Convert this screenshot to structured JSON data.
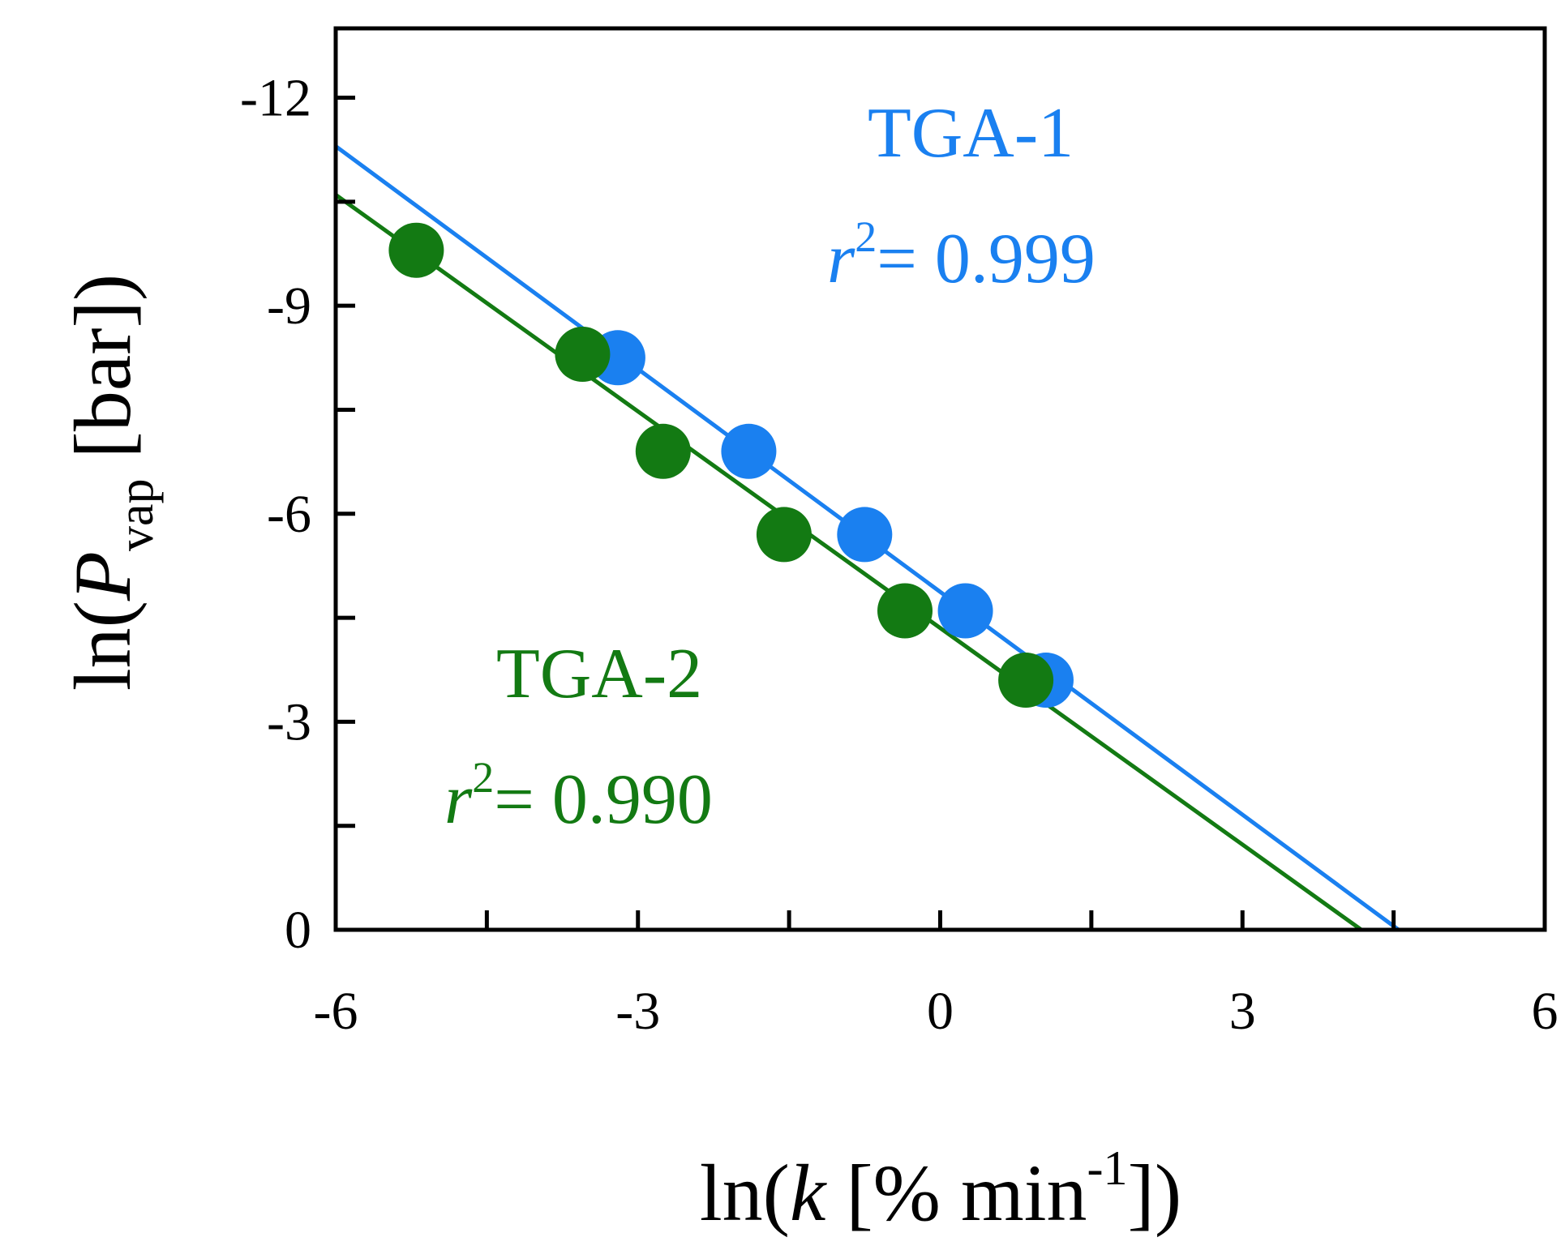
{
  "chart_data": {
    "type": "scatter",
    "title": "",
    "xlabel": {
      "prefix": "ln(",
      "var": "k",
      "unit_open": " [% min",
      "superscript": "-1",
      "unit_close": "])"
    },
    "ylabel": {
      "prefix": "ln(",
      "var": "P",
      "subscript": "vap",
      "unit": "  [bar])"
    },
    "xlim": [
      -6,
      6
    ],
    "ylim": [
      0,
      -13
    ],
    "y_inverted": true,
    "x_ticks": [
      {
        "value": -6,
        "label": "-6"
      },
      {
        "value": -3,
        "label": "-3"
      },
      {
        "value": 0,
        "label": "0"
      },
      {
        "value": 3,
        "label": "3"
      },
      {
        "value": 6,
        "label": "6"
      }
    ],
    "y_ticks": [
      {
        "value": 0,
        "label": "0"
      },
      {
        "value": -3,
        "label": "-3"
      },
      {
        "value": -6,
        "label": "-6"
      },
      {
        "value": -9,
        "label": "-9"
      },
      {
        "value": -12,
        "label": "-12"
      }
    ],
    "grid": false,
    "series": [
      {
        "name": "TGA-1",
        "color": "#1a80f0",
        "r2_text": "= 0.999",
        "r2_var": "r",
        "r2_sup": "2",
        "points": [
          {
            "x": -3.2,
            "y": -8.25
          },
          {
            "x": -1.9,
            "y": -6.9
          },
          {
            "x": -0.75,
            "y": -5.7
          },
          {
            "x": 0.25,
            "y": -4.6
          },
          {
            "x": 1.05,
            "y": -3.6
          }
        ],
        "fit": {
          "x1": -6,
          "y1": -11.3,
          "x2": 4.55,
          "y2": 0
        }
      },
      {
        "name": "TGA-2",
        "color": "#137a13",
        "r2_text": "= 0.990",
        "r2_var": "r",
        "r2_sup": "2",
        "points": [
          {
            "x": -5.2,
            "y": -9.8
          },
          {
            "x": -3.55,
            "y": -8.3
          },
          {
            "x": -2.75,
            "y": -6.9
          },
          {
            "x": -1.55,
            "y": -5.7
          },
          {
            "x": -0.35,
            "y": -4.6
          },
          {
            "x": 0.85,
            "y": -3.6
          }
        ],
        "fit": {
          "x1": -6,
          "y1": -10.6,
          "x2": 4.18,
          "y2": 0
        }
      }
    ]
  }
}
